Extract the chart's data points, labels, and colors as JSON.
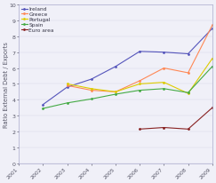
{
  "title": "",
  "ylabel": "Ratio External Debt / Exports",
  "xlabel": "",
  "years": [
    2001,
    2002,
    2003,
    2004,
    2005,
    2006,
    2007,
    2008,
    2009
  ],
  "series": {
    "Ireland": {
      "color": "#5555bb",
      "values": [
        null,
        3.7,
        4.8,
        5.3,
        6.1,
        7.05,
        7.0,
        6.9,
        8.5
      ]
    },
    "Greece": {
      "color": "#ff8855",
      "values": [
        null,
        null,
        4.9,
        4.6,
        4.5,
        5.2,
        6.0,
        5.7,
        8.7
      ]
    },
    "Portugal": {
      "color": "#ddcc00",
      "values": [
        null,
        null,
        5.0,
        4.7,
        4.5,
        5.0,
        5.1,
        4.4,
        6.6
      ]
    },
    "Spain": {
      "color": "#44aa44",
      "values": [
        null,
        3.45,
        3.8,
        4.05,
        4.35,
        4.6,
        4.7,
        4.45,
        6.1
      ]
    },
    "Euro area": {
      "color": "#882222",
      "values": [
        null,
        null,
        null,
        null,
        null,
        2.15,
        2.25,
        2.15,
        3.5
      ]
    }
  },
  "ylim": [
    0,
    10
  ],
  "xlim": [
    2001,
    2009
  ],
  "yticks": [
    0,
    1,
    2,
    3,
    4,
    5,
    6,
    7,
    8,
    9,
    10
  ],
  "xticks": [
    2001,
    2002,
    2003,
    2004,
    2005,
    2006,
    2007,
    2008,
    2009
  ],
  "marker": ".",
  "markersize": 2.0,
  "linewidth": 0.8,
  "legend_fontsize": 4.2,
  "tick_fontsize": 4.5,
  "ylabel_fontsize": 4.8,
  "background_color": "#f0f0f8"
}
